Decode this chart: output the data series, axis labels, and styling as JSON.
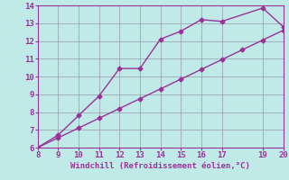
{
  "line1_x": [
    8,
    9,
    10,
    11,
    12,
    13,
    14,
    15,
    16,
    17,
    19,
    20
  ],
  "line1_y": [
    6.0,
    6.7,
    7.8,
    8.9,
    10.45,
    10.45,
    12.1,
    12.55,
    13.2,
    13.1,
    13.85,
    12.8
  ],
  "line2_x": [
    8,
    9,
    10,
    11,
    12,
    13,
    14,
    15,
    16,
    17,
    18,
    19,
    20
  ],
  "line2_y": [
    6.0,
    6.55,
    7.1,
    7.65,
    8.2,
    8.75,
    9.3,
    9.85,
    10.4,
    10.95,
    11.5,
    12.05,
    12.6
  ],
  "color": "#993399",
  "bg_color": "#c0eae8",
  "grid_color": "#9999aa",
  "xlabel": "Windchill (Refroidissement éolien,°C)",
  "xlim": [
    8,
    20
  ],
  "ylim": [
    6,
    14
  ],
  "xticks": [
    8,
    9,
    10,
    11,
    12,
    13,
    14,
    15,
    16,
    17,
    19,
    20
  ],
  "yticks": [
    6,
    7,
    8,
    9,
    10,
    11,
    12,
    13,
    14
  ],
  "marker": "D",
  "markersize": 2.5,
  "linewidth": 1.0
}
